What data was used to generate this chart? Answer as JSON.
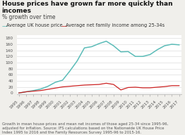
{
  "title": "House prices have grown far more quickly than incomes",
  "subtitle": "% growth over time",
  "legend_house": "Average UK house price",
  "legend_income": "Average net family income among 25-34s",
  "caption": "Growth in mean house prices and mean net incomes of those aged 25-34 since 1995-96,\nadjusted for inflation. Source: IFS calculations based on the Nationwide UK House Price\nIndex 1995 to 2016 and the Family Resources Survey 1995-96 to 2015-16.",
  "years": [
    "1995",
    "1996",
    "1997",
    "1998",
    "1999",
    "2000",
    "2001",
    "2002",
    "2003",
    "2004",
    "2005",
    "2006",
    "2007",
    "2008",
    "2009",
    "2010",
    "2011",
    "2012",
    "2013",
    "2014",
    "2015",
    "2016",
    "2017"
  ],
  "house_prices": [
    0,
    4,
    8,
    13,
    22,
    35,
    42,
    72,
    105,
    148,
    152,
    162,
    170,
    155,
    135,
    136,
    120,
    120,
    126,
    142,
    155,
    160,
    158
  ],
  "incomes": [
    0,
    4,
    6,
    8,
    12,
    16,
    20,
    22,
    24,
    26,
    27,
    28,
    32,
    28,
    10,
    18,
    19,
    17,
    17,
    19,
    21,
    24,
    24
  ],
  "house_color": "#5BBCB8",
  "income_color": "#CC2222",
  "bg_color": "#F0EFEB",
  "plot_bg": "#FFFFFF",
  "ylim": [
    -5,
    190
  ],
  "yticks": [
    0,
    20,
    40,
    60,
    80,
    100,
    120,
    140,
    160,
    180
  ],
  "title_fontsize": 6.5,
  "subtitle_fontsize": 5.5,
  "caption_fontsize": 3.8,
  "legend_fontsize": 4.8,
  "tick_fontsize": 4.2
}
